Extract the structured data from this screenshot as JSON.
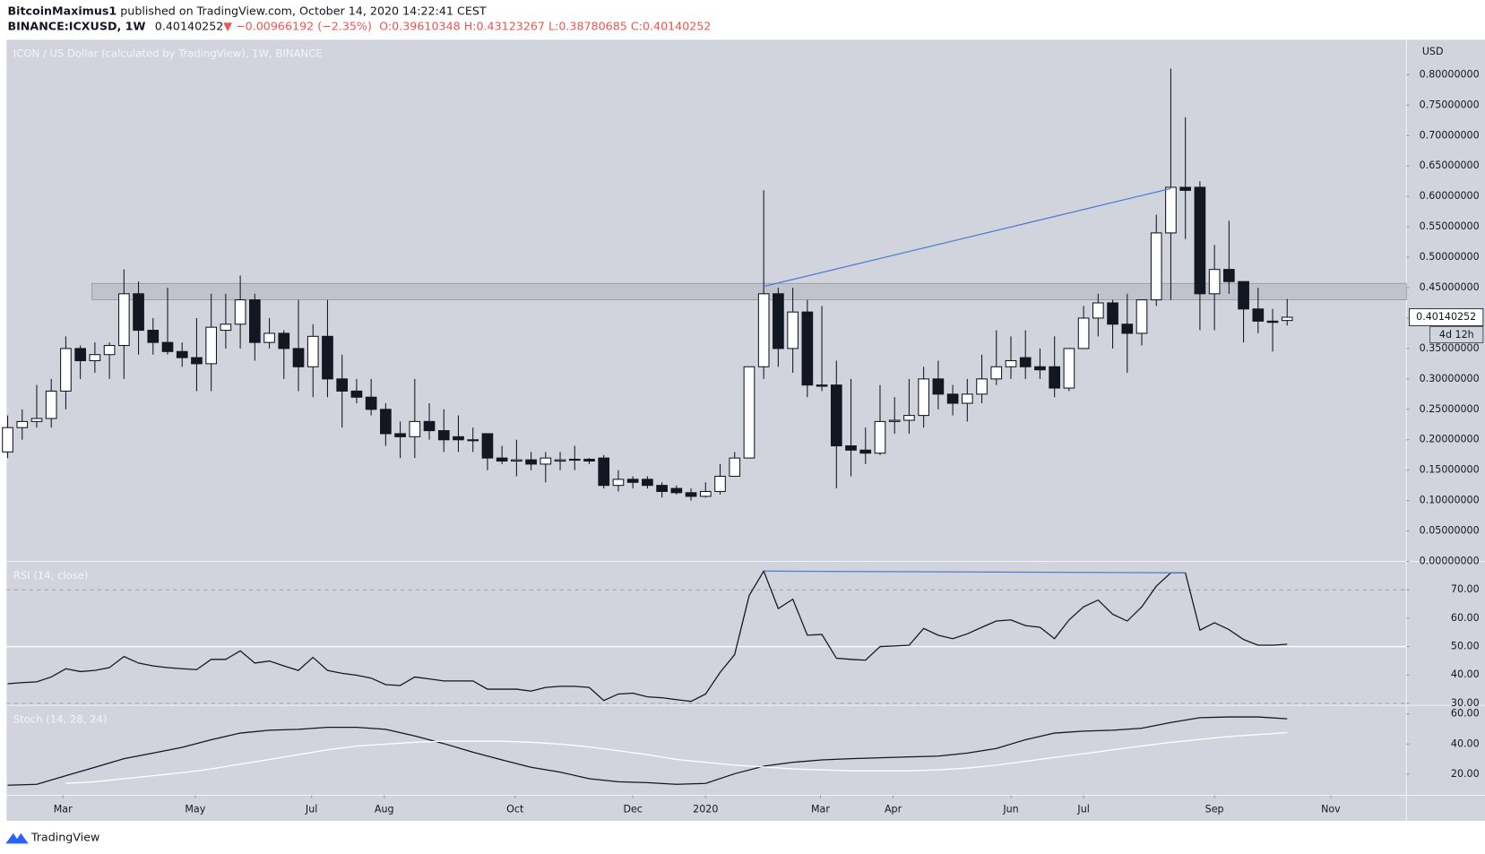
{
  "header": {
    "author": "BitcoinMaximus1",
    "published": "published on TradingView.com, October 14, 2020 14:22:41 CEST",
    "symbol": "BINANCE:ICXUSD, 1W",
    "last": "0.40140252",
    "change": "▼ −0.00966192 (−2.35%)",
    "ohlc": "O:0.39610348 H:0.43123267 L:0.38780685 C:0.40140252"
  },
  "footer": {
    "brand": "TradingView"
  },
  "chart_data": [
    {
      "type": "candlestick",
      "title": "ICON / US Dollar (calculated by TradingView), 1W, BINANCE",
      "unit": "USD",
      "up_color": "#ffffff",
      "down_color": "#131722",
      "x": [
        0,
        1,
        2,
        3,
        4,
        5,
        6,
        7,
        8,
        9,
        10,
        11,
        12,
        13,
        14,
        15,
        16,
        17,
        18,
        19,
        20,
        21,
        22,
        23,
        24,
        25,
        26,
        27,
        28,
        29,
        30,
        31,
        32,
        33,
        34,
        35,
        36,
        37,
        38,
        39,
        40,
        41,
        42,
        43,
        44,
        45,
        46,
        47,
        48,
        49,
        50,
        51,
        52,
        53,
        54,
        55,
        56,
        57,
        58,
        59,
        60,
        61,
        62,
        63,
        64,
        65,
        66,
        67,
        68,
        69,
        70,
        71,
        72,
        73,
        74,
        75,
        76,
        77,
        78,
        79,
        80,
        81,
        82,
        83,
        84,
        85,
        86,
        87,
        88
      ],
      "open": [
        0.18,
        0.22,
        0.23,
        0.235,
        0.28,
        0.35,
        0.33,
        0.34,
        0.355,
        0.44,
        0.38,
        0.36,
        0.345,
        0.335,
        0.325,
        0.38,
        0.39,
        0.43,
        0.36,
        0.375,
        0.35,
        0.32,
        0.37,
        0.3,
        0.28,
        0.27,
        0.25,
        0.21,
        0.205,
        0.23,
        0.215,
        0.205,
        0.2,
        0.21,
        0.17,
        0.165,
        0.167,
        0.16,
        0.165,
        0.167,
        0.168,
        0.17,
        0.125,
        0.135,
        0.135,
        0.125,
        0.12,
        0.113,
        0.107,
        0.115,
        0.14,
        0.17,
        0.32,
        0.44,
        0.35,
        0.41,
        0.29,
        0.29,
        0.19,
        0.183,
        0.178,
        0.23,
        0.232,
        0.24,
        0.3,
        0.275,
        0.26,
        0.275,
        0.3,
        0.32,
        0.335,
        0.32,
        0.32,
        0.285,
        0.35,
        0.4,
        0.425,
        0.39,
        0.375,
        0.43,
        0.54,
        0.615,
        0.615,
        0.44,
        0.48,
        0.46,
        0.415,
        0.395,
        0.39610348
      ],
      "high": [
        0.24,
        0.25,
        0.29,
        0.3,
        0.37,
        0.355,
        0.36,
        0.36,
        0.48,
        0.46,
        0.4,
        0.45,
        0.36,
        0.4,
        0.44,
        0.44,
        0.47,
        0.44,
        0.4,
        0.38,
        0.43,
        0.39,
        0.43,
        0.34,
        0.3,
        0.3,
        0.26,
        0.23,
        0.3,
        0.26,
        0.25,
        0.24,
        0.22,
        0.21,
        0.19,
        0.2,
        0.18,
        0.18,
        0.18,
        0.19,
        0.17,
        0.175,
        0.15,
        0.14,
        0.14,
        0.13,
        0.125,
        0.12,
        0.13,
        0.16,
        0.18,
        0.32,
        0.61,
        0.45,
        0.45,
        0.43,
        0.42,
        0.33,
        0.3,
        0.22,
        0.29,
        0.27,
        0.3,
        0.32,
        0.33,
        0.29,
        0.3,
        0.34,
        0.38,
        0.37,
        0.38,
        0.35,
        0.37,
        0.35,
        0.42,
        0.44,
        0.43,
        0.44,
        0.43,
        0.57,
        0.81,
        0.73,
        0.625,
        0.52,
        0.56,
        0.46,
        0.45,
        0.415,
        0.43123267
      ],
      "low": [
        0.17,
        0.2,
        0.22,
        0.22,
        0.25,
        0.3,
        0.31,
        0.3,
        0.3,
        0.34,
        0.34,
        0.34,
        0.32,
        0.28,
        0.28,
        0.35,
        0.35,
        0.33,
        0.35,
        0.3,
        0.28,
        0.27,
        0.27,
        0.22,
        0.26,
        0.24,
        0.19,
        0.17,
        0.17,
        0.2,
        0.18,
        0.18,
        0.18,
        0.15,
        0.16,
        0.14,
        0.15,
        0.13,
        0.15,
        0.15,
        0.16,
        0.12,
        0.115,
        0.12,
        0.12,
        0.105,
        0.11,
        0.1,
        0.105,
        0.11,
        0.14,
        0.17,
        0.3,
        0.32,
        0.31,
        0.27,
        0.28,
        0.12,
        0.14,
        0.16,
        0.175,
        0.21,
        0.21,
        0.22,
        0.25,
        0.24,
        0.23,
        0.26,
        0.29,
        0.3,
        0.3,
        0.3,
        0.27,
        0.28,
        0.35,
        0.37,
        0.35,
        0.31,
        0.355,
        0.42,
        0.43,
        0.53,
        0.38,
        0.38,
        0.44,
        0.36,
        0.375,
        0.345,
        0.38780685
      ],
      "close": [
        0.22,
        0.23,
        0.235,
        0.28,
        0.35,
        0.33,
        0.34,
        0.355,
        0.44,
        0.38,
        0.36,
        0.345,
        0.335,
        0.325,
        0.385,
        0.39,
        0.43,
        0.36,
        0.375,
        0.35,
        0.32,
        0.37,
        0.3,
        0.28,
        0.27,
        0.25,
        0.21,
        0.205,
        0.23,
        0.215,
        0.2,
        0.2,
        0.2,
        0.17,
        0.165,
        0.167,
        0.16,
        0.17,
        0.167,
        0.168,
        0.165,
        0.125,
        0.135,
        0.13,
        0.125,
        0.115,
        0.113,
        0.107,
        0.115,
        0.14,
        0.17,
        0.32,
        0.44,
        0.35,
        0.41,
        0.29,
        0.288,
        0.19,
        0.183,
        0.178,
        0.23,
        0.232,
        0.24,
        0.3,
        0.275,
        0.26,
        0.275,
        0.3,
        0.32,
        0.33,
        0.32,
        0.315,
        0.285,
        0.35,
        0.4,
        0.425,
        0.39,
        0.375,
        0.43,
        0.54,
        0.615,
        0.61,
        0.44,
        0.48,
        0.46,
        0.415,
        0.395,
        0.393,
        0.40140252
      ],
      "zone": [
        0.43,
        0.457
      ],
      "zone_color": "#b2b5be",
      "trendline": {
        "x": [
          52,
          80
        ],
        "y": [
          0.452,
          0.613
        ],
        "color": "#4a7fd4"
      },
      "last_label": "0.40140252",
      "countdown": "4d 12h",
      "xlim": [
        -0.07,
        96.2
      ],
      "ylim": [
        0,
        0.8575
      ],
      "yticks": [
        {
          "value": 0,
          "label": "0.00000000"
        },
        {
          "value": 0.05,
          "label": "0.05000000"
        },
        {
          "value": 0.1,
          "label": "0.10000000"
        },
        {
          "value": 0.15,
          "label": "0.15000000"
        },
        {
          "value": 0.2,
          "label": "0.20000000"
        },
        {
          "value": 0.25,
          "label": "0.25000000"
        },
        {
          "value": 0.3,
          "label": "0.30000000"
        },
        {
          "value": 0.35,
          "label": "0.35000000"
        },
        {
          "value": 0.4,
          "label": "0.40000000"
        },
        {
          "value": 0.45,
          "label": "0.45000000"
        },
        {
          "value": 0.5,
          "label": "0.50000000"
        },
        {
          "value": 0.55,
          "label": "0.55000000"
        },
        {
          "value": 0.6,
          "label": "0.60000000"
        },
        {
          "value": 0.65,
          "label": "0.65000000"
        },
        {
          "value": 0.7,
          "label": "0.70000000"
        },
        {
          "value": 0.75,
          "label": "0.75000000"
        },
        {
          "value": 0.8,
          "label": "0.80000000"
        }
      ]
    },
    {
      "type": "line",
      "title": "RSI (14, close)",
      "x": [
        0,
        1,
        2,
        3,
        4,
        5,
        6,
        7,
        8,
        9,
        10,
        11,
        12,
        13,
        14,
        15,
        16,
        17,
        18,
        19,
        20,
        21,
        22,
        23,
        24,
        25,
        26,
        27,
        28,
        29,
        30,
        31,
        32,
        33,
        34,
        35,
        36,
        37,
        38,
        39,
        40,
        41,
        42,
        43,
        44,
        45,
        46,
        47,
        48,
        49,
        50,
        51,
        52,
        53,
        54,
        55,
        56,
        57,
        58,
        59,
        60,
        61,
        62,
        63,
        64,
        65,
        66,
        67,
        68,
        69,
        70,
        71,
        72,
        73,
        74,
        75,
        76,
        77,
        78,
        79,
        80,
        81,
        82,
        83,
        84,
        85,
        86,
        87,
        88
      ],
      "series": [
        {
          "color": "#131722",
          "values": [
            36.9,
            37.3,
            37.6,
            39.3,
            42.2,
            41.2,
            41.6,
            42.6,
            46.5,
            44.2,
            43.2,
            42.6,
            42.2,
            41.9,
            45.5,
            45.5,
            48.5,
            44.2,
            44.9,
            43.2,
            41.6,
            46.2,
            41.6,
            40.6,
            39.9,
            38.9,
            36.6,
            36.3,
            39.3,
            38.6,
            37.9,
            37.9,
            37.9,
            35,
            35,
            35,
            34.3,
            35.6,
            36,
            36,
            35.6,
            31,
            33.3,
            33.6,
            32.3,
            32,
            31.3,
            30.7,
            33.3,
            40.9,
            47.2,
            68,
            76.6,
            63.4,
            66.7,
            54,
            54.3,
            45.9,
            45.5,
            45.2,
            50,
            50.2,
            50.5,
            56.4,
            54,
            52.8,
            54.5,
            56.8,
            59,
            59.4,
            57.4,
            56.8,
            52.8,
            59.4,
            64,
            66.4,
            61.4,
            59,
            64,
            71.3,
            76,
            76,
            55.8,
            58.4,
            56,
            52.5,
            50.5,
            50.5,
            50.8
          ]
        }
      ],
      "dashed_levels": [
        30,
        70
      ],
      "level": 50,
      "trendline": {
        "x": [
          52,
          81
        ],
        "y": [
          76.6,
          76
        ],
        "color": "#4a7fd4"
      },
      "xlim": [
        -0.07,
        96.2
      ],
      "ylim": [
        29.3,
        80
      ],
      "yticks": [
        {
          "value": 30,
          "label": "30.00"
        },
        {
          "value": 40,
          "label": "40.00"
        },
        {
          "value": 50,
          "label": "50.00"
        },
        {
          "value": 60,
          "label": "60.00"
        },
        {
          "value": 70,
          "label": "70.00"
        }
      ]
    },
    {
      "type": "line",
      "title": "Stoch (14, 28, 24)",
      "x": [
        0,
        2,
        4,
        6,
        8,
        10,
        12,
        14,
        16,
        18,
        20,
        22,
        24,
        26,
        28,
        30,
        32,
        34,
        36,
        38,
        40,
        42,
        44,
        46,
        48,
        50,
        52,
        54,
        56,
        58,
        60,
        62,
        64,
        66,
        68,
        70,
        72,
        74,
        76,
        78,
        80,
        82,
        84,
        86,
        88
      ],
      "series": [
        {
          "color": "#131722",
          "values": [
            12.7,
            13.3,
            19,
            24.6,
            30.3,
            34,
            37.8,
            42.9,
            47.3,
            49.2,
            49.8,
            51.1,
            51.1,
            49.8,
            45.4,
            40.3,
            34.6,
            29.5,
            24.6,
            21.4,
            17,
            15,
            14.4,
            13.3,
            13.9,
            20.3,
            25.3,
            27.9,
            29.5,
            30.3,
            30.9,
            31.5,
            32,
            34,
            37.1,
            42.9,
            47.3,
            48.6,
            49.2,
            50.5,
            54.3,
            57.5,
            58,
            58,
            56.8
          ]
        },
        {
          "color": "#ffffff",
          "values": [
            null,
            null,
            13.9,
            15,
            17,
            19,
            21,
            23.5,
            26.7,
            29.8,
            33,
            36.2,
            38.7,
            40,
            41.2,
            41.9,
            41.9,
            41.9,
            41.2,
            40,
            38.1,
            35.6,
            33,
            29.8,
            27.9,
            26,
            24.8,
            23.5,
            22.9,
            22.2,
            22.2,
            22.2,
            22.9,
            24.1,
            26,
            28.6,
            31.1,
            33.6,
            36.2,
            38.7,
            41.2,
            43.1,
            45,
            46.3,
            47.6
          ]
        }
      ],
      "xlim": [
        -0.07,
        96.2
      ],
      "ylim": [
        6,
        65.7
      ],
      "yticks": [
        {
          "value": 20,
          "label": "20.00"
        },
        {
          "value": 40,
          "label": "40.00"
        },
        {
          "value": 60,
          "label": "60.00"
        }
      ],
      "xticks": [
        {
          "value": 3.8,
          "label": "Mar"
        },
        {
          "value": 12.9,
          "label": "May"
        },
        {
          "value": 20.9,
          "label": "Jul"
        },
        {
          "value": 25.9,
          "label": "Aug"
        },
        {
          "value": 34.9,
          "label": "Oct"
        },
        {
          "value": 43,
          "label": "Dec"
        },
        {
          "value": 48,
          "label": "2020"
        },
        {
          "value": 55.9,
          "label": "Mar"
        },
        {
          "value": 60.9,
          "label": "Apr"
        },
        {
          "value": 69,
          "label": "Jun"
        },
        {
          "value": 74,
          "label": "Jul"
        },
        {
          "value": 83,
          "label": "Sep"
        },
        {
          "value": 91,
          "label": "Nov"
        }
      ]
    }
  ]
}
